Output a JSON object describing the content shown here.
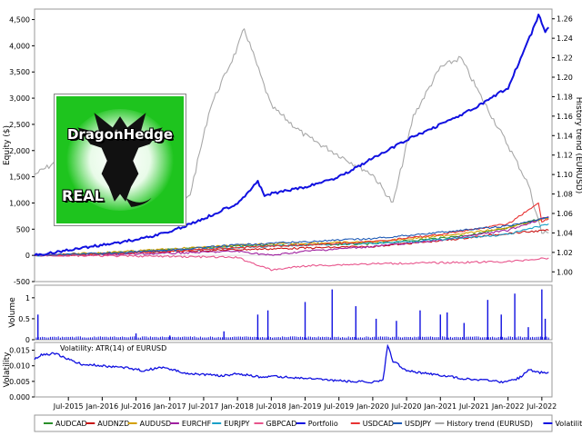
{
  "chart_data": [
    {
      "panel": "equity",
      "type": "line",
      "ylabel": "Equity ($)",
      "y2label": "History trend (EURUSD)",
      "ylim": [
        -500,
        4700
      ],
      "y2lim": [
        0.99,
        1.27
      ],
      "yticks": [
        -500,
        0,
        500,
        1000,
        1500,
        2000,
        2500,
        3000,
        3500,
        4000,
        4500
      ],
      "ytick_labels": [
        "-500",
        "0",
        "500",
        "1,000",
        "1,500",
        "2,000",
        "2,500",
        "3,000",
        "3,500",
        "4,000",
        "4,500"
      ],
      "y2ticks": [
        1.0,
        1.02,
        1.04,
        1.06,
        1.08,
        1.1,
        1.12,
        1.14,
        1.16,
        1.18,
        1.2,
        1.22,
        1.24,
        1.26
      ],
      "y2tick_labels": [
        "1.00",
        "1.02",
        "1.04",
        "1.06",
        "1.08",
        "1.10",
        "1.12",
        "1.14",
        "1.16",
        "1.18",
        "1.20",
        "1.22",
        "1.24",
        "1.26"
      ],
      "xlim": [
        2015.0,
        2022.65
      ],
      "grid": false,
      "series": [
        {
          "name": "AUDCAD",
          "color": "#2a8f2a",
          "x": [
            2015.0,
            2016.0,
            2017.0,
            2018.0,
            2019.0,
            2020.0,
            2021.0,
            2021.5,
            2022.0,
            2022.3,
            2022.6
          ],
          "y": [
            0,
            40,
            110,
            180,
            200,
            220,
            330,
            400,
            520,
            650,
            720
          ]
        },
        {
          "name": "AUDNZD",
          "color": "#c81414",
          "x": [
            2015.0,
            2016.0,
            2017.0,
            2018.0,
            2019.0,
            2020.0,
            2021.0,
            2022.0,
            2022.6
          ],
          "y": [
            0,
            25,
            70,
            110,
            140,
            170,
            280,
            420,
            480
          ]
        },
        {
          "name": "AUDUSD",
          "color": "#d4a000",
          "x": [
            2015.0,
            2016.0,
            2017.0,
            2018.0,
            2019.0,
            2020.0,
            2021.0,
            2022.0,
            2022.6
          ],
          "y": [
            0,
            50,
            120,
            200,
            230,
            260,
            370,
            520,
            720
          ]
        },
        {
          "name": "EURCHF",
          "color": "#a020a0",
          "x": [
            2015.0,
            2016.0,
            2017.0,
            2018.0,
            2018.5,
            2019.0,
            2020.0,
            2021.0,
            2022.0,
            2022.6
          ],
          "y": [
            0,
            10,
            40,
            80,
            0,
            80,
            170,
            290,
            480,
            740
          ]
        },
        {
          "name": "EURJPY",
          "color": "#1aa0c8",
          "x": [
            2015.0,
            2016.0,
            2017.0,
            2018.0,
            2019.0,
            2020.0,
            2021.0,
            2022.0,
            2022.6
          ],
          "y": [
            0,
            30,
            90,
            150,
            200,
            230,
            300,
            400,
            600
          ]
        },
        {
          "name": "GBPCAD",
          "color": "#e8558c",
          "x": [
            2015.0,
            2016.0,
            2017.0,
            2018.0,
            2018.5,
            2019.0,
            2020.0,
            2021.0,
            2022.0,
            2022.6
          ],
          "y": [
            0,
            -10,
            -20,
            -40,
            -280,
            -200,
            -160,
            -140,
            -120,
            -50
          ]
        },
        {
          "name": "Portfolio",
          "color": "#1010e0",
          "x": [
            2015.0,
            2015.5,
            2016.0,
            2016.5,
            2017.0,
            2017.5,
            2018.0,
            2018.3,
            2018.4,
            2019.0,
            2019.5,
            2020.0,
            2020.5,
            2021.0,
            2021.5,
            2022.0,
            2022.4,
            2022.45,
            2022.55,
            2022.6
          ],
          "y": [
            0,
            100,
            200,
            300,
            450,
            700,
            1000,
            1400,
            1150,
            1300,
            1500,
            1850,
            2200,
            2500,
            2800,
            3200,
            4400,
            4600,
            4250,
            4350
          ]
        },
        {
          "name": "USDCAD",
          "color": "#e83232",
          "x": [
            2015.0,
            2016.0,
            2017.0,
            2018.0,
            2019.0,
            2020.0,
            2021.0,
            2022.0,
            2022.45,
            2022.5,
            2022.6
          ],
          "y": [
            0,
            30,
            80,
            150,
            200,
            260,
            400,
            600,
            1000,
            650,
            700
          ]
        },
        {
          "name": "USDJPY",
          "color": "#1e5ab4",
          "x": [
            2015.0,
            2016.0,
            2017.0,
            2018.0,
            2019.0,
            2020.0,
            2021.0,
            2022.0,
            2022.6
          ],
          "y": [
            0,
            40,
            100,
            200,
            260,
            320,
            440,
            560,
            720
          ]
        },
        {
          "name": "History trend (EURUSD)",
          "color": "#a8a8a8",
          "axis": "right",
          "x": [
            2015.0,
            2015.5,
            2016.0,
            2016.5,
            2017.0,
            2017.3,
            2017.6,
            2018.0,
            2018.1,
            2018.5,
            2019.0,
            2019.5,
            2020.0,
            2020.3,
            2020.6,
            2021.0,
            2021.3,
            2021.6,
            2022.0,
            2022.3,
            2022.5,
            2022.6
          ],
          "y": [
            1.1,
            1.12,
            1.1,
            1.11,
            1.05,
            1.08,
            1.17,
            1.23,
            1.25,
            1.17,
            1.14,
            1.12,
            1.1,
            1.07,
            1.16,
            1.21,
            1.22,
            1.18,
            1.13,
            1.09,
            1.04,
            1.04
          ]
        }
      ]
    },
    {
      "panel": "volume",
      "type": "bar",
      "ylabel": "Volume",
      "ylim": [
        0,
        1.3
      ],
      "yticks": [
        0,
        0.5,
        1.0
      ],
      "ytick_labels": [
        "0",
        "0.5",
        "1"
      ],
      "color": "#1010e0",
      "spikes_x": [
        2015.05,
        2016.5,
        2017.0,
        2017.8,
        2018.3,
        2018.45,
        2019.0,
        2019.4,
        2019.75,
        2020.05,
        2020.35,
        2020.7,
        2021.0,
        2021.1,
        2021.35,
        2021.7,
        2021.9,
        2022.1,
        2022.3,
        2022.5,
        2022.55
      ],
      "spikes_y": [
        0.6,
        0.15,
        0.1,
        0.2,
        0.6,
        0.7,
        0.9,
        1.2,
        0.8,
        0.5,
        0.45,
        0.7,
        0.6,
        0.65,
        0.4,
        0.95,
        0.6,
        1.1,
        0.3,
        1.2,
        0.5
      ],
      "baseline": 0.05
    },
    {
      "panel": "volatility",
      "type": "line",
      "ylabel": "Volatility",
      "annotation": "Volatility: ATR(14) of EURUSD",
      "ylim": [
        0,
        0.0175
      ],
      "yticks": [
        0,
        0.005,
        0.01,
        0.015
      ],
      "ytick_labels": [
        "0.000",
        "0.005",
        "0.010",
        "0.015"
      ],
      "color": "#1010e0",
      "x": [
        2015.0,
        2015.1,
        2015.3,
        2015.5,
        2015.7,
        2016.0,
        2016.3,
        2016.6,
        2016.9,
        2017.2,
        2017.5,
        2017.8,
        2018.0,
        2018.3,
        2018.6,
        2019.0,
        2019.3,
        2019.6,
        2020.0,
        2020.15,
        2020.22,
        2020.3,
        2020.5,
        2020.8,
        2021.0,
        2021.3,
        2021.6,
        2021.9,
        2022.1,
        2022.2,
        2022.3,
        2022.45,
        2022.6
      ],
      "y": [
        0.012,
        0.0135,
        0.014,
        0.012,
        0.0105,
        0.01,
        0.0095,
        0.0085,
        0.0095,
        0.0078,
        0.0072,
        0.0068,
        0.0075,
        0.0065,
        0.0065,
        0.006,
        0.0055,
        0.005,
        0.0048,
        0.0052,
        0.0165,
        0.0115,
        0.0085,
        0.0075,
        0.007,
        0.006,
        0.0055,
        0.0048,
        0.0055,
        0.0065,
        0.0088,
        0.0078,
        0.008
      ]
    }
  ],
  "x_axis": {
    "tick_positions": [
      2015.5,
      2016.0,
      2016.5,
      2017.0,
      2017.5,
      2018.0,
      2018.5,
      2019.0,
      2019.5,
      2020.0,
      2020.5,
      2021.0,
      2021.5,
      2022.0,
      2022.5
    ],
    "tick_labels": [
      "Jul-2015",
      "Jan-2016",
      "Jul-2016",
      "Jan-2017",
      "Jul-2017",
      "Jan-2018",
      "Jul-2018",
      "Jan-2019",
      "Jul-2019",
      "Jan-2020",
      "Jul-2020",
      "Jan-2021",
      "Jul-2021",
      "Jan-2022",
      "Jul-2022"
    ]
  },
  "legend": {
    "placement": "bottom",
    "entries": [
      {
        "label": "AUDCAD",
        "color": "#2a8f2a"
      },
      {
        "label": "AUDNZD",
        "color": "#c81414"
      },
      {
        "label": "AUDUSD",
        "color": "#d4a000"
      },
      {
        "label": "EURCHF",
        "color": "#a020a0"
      },
      {
        "label": "EURJPY",
        "color": "#1aa0c8"
      },
      {
        "label": "GBPCAD",
        "color": "#e8558c"
      },
      {
        "label": "Portfolio",
        "color": "#1010e0"
      },
      {
        "label": "USDCAD",
        "color": "#e83232"
      },
      {
        "label": "USDJPY",
        "color": "#1e5ab4"
      },
      {
        "label": "History trend (EURUSD)",
        "color": "#a8a8a8"
      },
      {
        "label": "Volatility",
        "color": "#1010e0"
      }
    ]
  },
  "logo": {
    "brand": "DragonHedge",
    "sub": "REAL",
    "background": "#1ec41e",
    "icon": "dragon-icon"
  }
}
